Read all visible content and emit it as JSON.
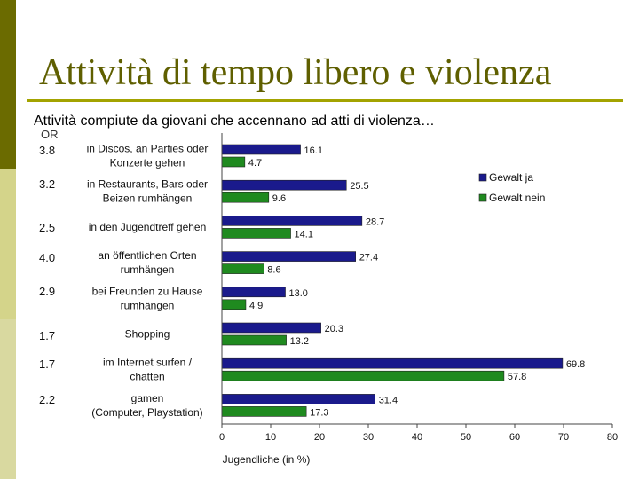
{
  "slide": {
    "title": "Attività di tempo libero e violenza",
    "subtitle": "Attività compiute da giovani che accennano ad atti di violenza…",
    "or_label": "OR",
    "or_values": [
      "3.8",
      "3.2",
      "2.5",
      "4.0",
      "2.9",
      "1.7",
      "1.7",
      "2.2"
    ]
  },
  "colors": {
    "sidebar_dark": "#6b6b00",
    "sidebar_light": "#d4d48a",
    "title": "#5f5f00",
    "rule": "#a3a300",
    "series_ja": "#1a1a8c",
    "series_nein": "#1f8a1f"
  },
  "chart_data": {
    "type": "bar",
    "orientation": "horizontal",
    "categories": [
      [
        "in Discos, an Parties oder",
        "Konzerte gehen"
      ],
      [
        "in Restaurants, Bars oder",
        "Beizen rumhängen"
      ],
      [
        "in den Jugendtreff gehen"
      ],
      [
        "an öffentlichen Orten",
        "rumhängen"
      ],
      [
        "bei Freunden zu Hause",
        "rumhängen"
      ],
      [
        "Shopping"
      ],
      [
        "im Internet surfen /",
        "chatten"
      ],
      [
        "gamen",
        "(Computer, Playstation)"
      ]
    ],
    "series": [
      {
        "name": "Gewalt ja",
        "values": [
          16.1,
          25.5,
          28.7,
          27.4,
          13.0,
          20.3,
          69.8,
          31.4
        ],
        "labels": [
          "16.1",
          "25.5",
          "28.7",
          "27.4",
          "13.0",
          "20.3",
          "69.8",
          "31.4"
        ]
      },
      {
        "name": "Gewalt nein",
        "values": [
          4.7,
          9.6,
          14.1,
          8.6,
          4.9,
          13.2,
          57.8,
          17.3
        ],
        "labels": [
          "4.7",
          "9.6",
          "14.1",
          "8.6",
          "4.9",
          "13.2",
          "57.8",
          "17.3"
        ]
      }
    ],
    "xlim": [
      0,
      80
    ],
    "xticks": [
      "0",
      "10",
      "20",
      "30",
      "40",
      "50",
      "60",
      "70",
      "80"
    ],
    "xlabel": "Jugendliche (in %)",
    "legend": "top-right",
    "grid": false
  }
}
